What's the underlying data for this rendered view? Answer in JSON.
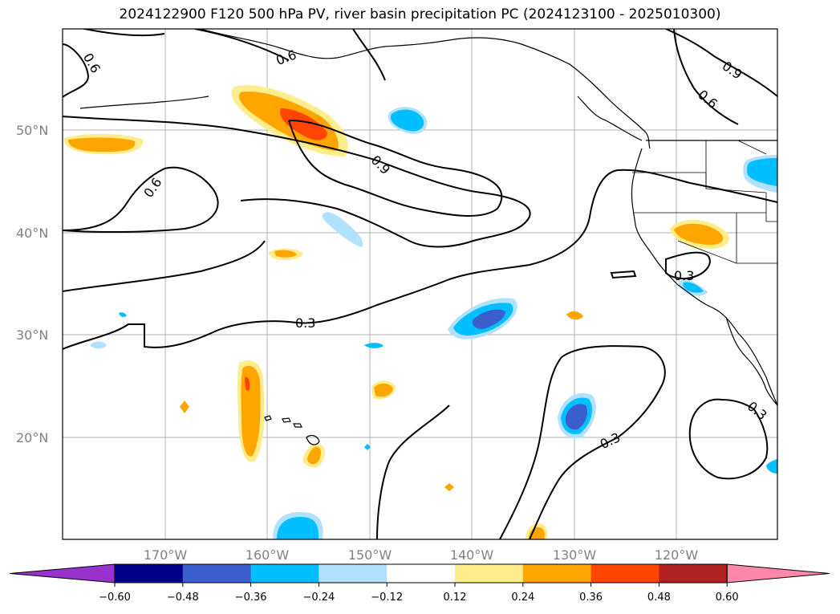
{
  "title": "2024122900 F120 500 hPa PV, river basin precipitation PC (2024123100 - 2025010300)",
  "map": {
    "lat_labels": [
      "50°N",
      "40°N",
      "30°N",
      "20°N"
    ],
    "lon_labels": [
      "170°W",
      "160°W",
      "150°W",
      "140°W",
      "130°W",
      "120°W"
    ],
    "contour_labels": [
      "0.6",
      "0.6",
      "0.6",
      "0.9",
      "0.9",
      "0.6",
      "0.3",
      "0.3",
      "0.3",
      "0.3"
    ]
  },
  "colorbar": {
    "tick_labels": [
      "−0.60",
      "−0.48",
      "−0.36",
      "−0.24",
      "−0.12",
      "0.12",
      "0.24",
      "0.36",
      "0.48",
      "0.60"
    ],
    "colors": [
      "#9932cc",
      "#00008b",
      "#3a5fcd",
      "#00bfff",
      "#b0e2ff",
      "#ffffff",
      "#ffec8b",
      "#ffa500",
      "#ff4500",
      "#b22222",
      "#ff88aa"
    ]
  }
}
